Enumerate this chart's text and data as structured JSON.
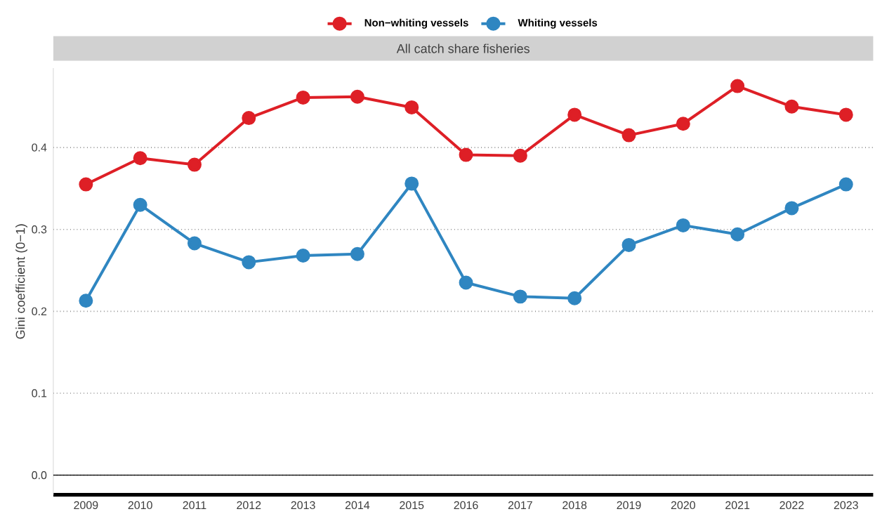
{
  "chart_data": {
    "type": "line",
    "title": "All catch share fisheries",
    "ylabel": "Gini coefficient (0−1)",
    "categories": [
      "2009",
      "2010",
      "2011",
      "2012",
      "2013",
      "2014",
      "2015",
      "2016",
      "2017",
      "2018",
      "2019",
      "2020",
      "2021",
      "2022",
      "2023"
    ],
    "series": [
      {
        "name": "Non−whiting vessels",
        "color": "#de1f26",
        "values": [
          0.355,
          0.387,
          0.379,
          0.436,
          0.461,
          0.462,
          0.449,
          0.391,
          0.39,
          0.44,
          0.415,
          0.429,
          0.475,
          0.45,
          0.44
        ]
      },
      {
        "name": "Whiting vessels",
        "color": "#2f86c1",
        "values": [
          0.213,
          0.33,
          0.283,
          0.26,
          0.268,
          0.27,
          0.356,
          0.235,
          0.218,
          0.216,
          0.281,
          0.305,
          0.294,
          0.326,
          0.355
        ]
      }
    ],
    "ylim": [
      -0.024,
      0.497
    ],
    "yticks": [
      {
        "value": 0,
        "label": "0.0"
      },
      0.1,
      0.2,
      0.3,
      0.4
    ],
    "ref_lines": [
      {
        "axis": "y",
        "value": 0,
        "color": "#000000"
      }
    ],
    "grid": "y",
    "legend": "top",
    "marker": "circle",
    "line_style": "solid"
  }
}
